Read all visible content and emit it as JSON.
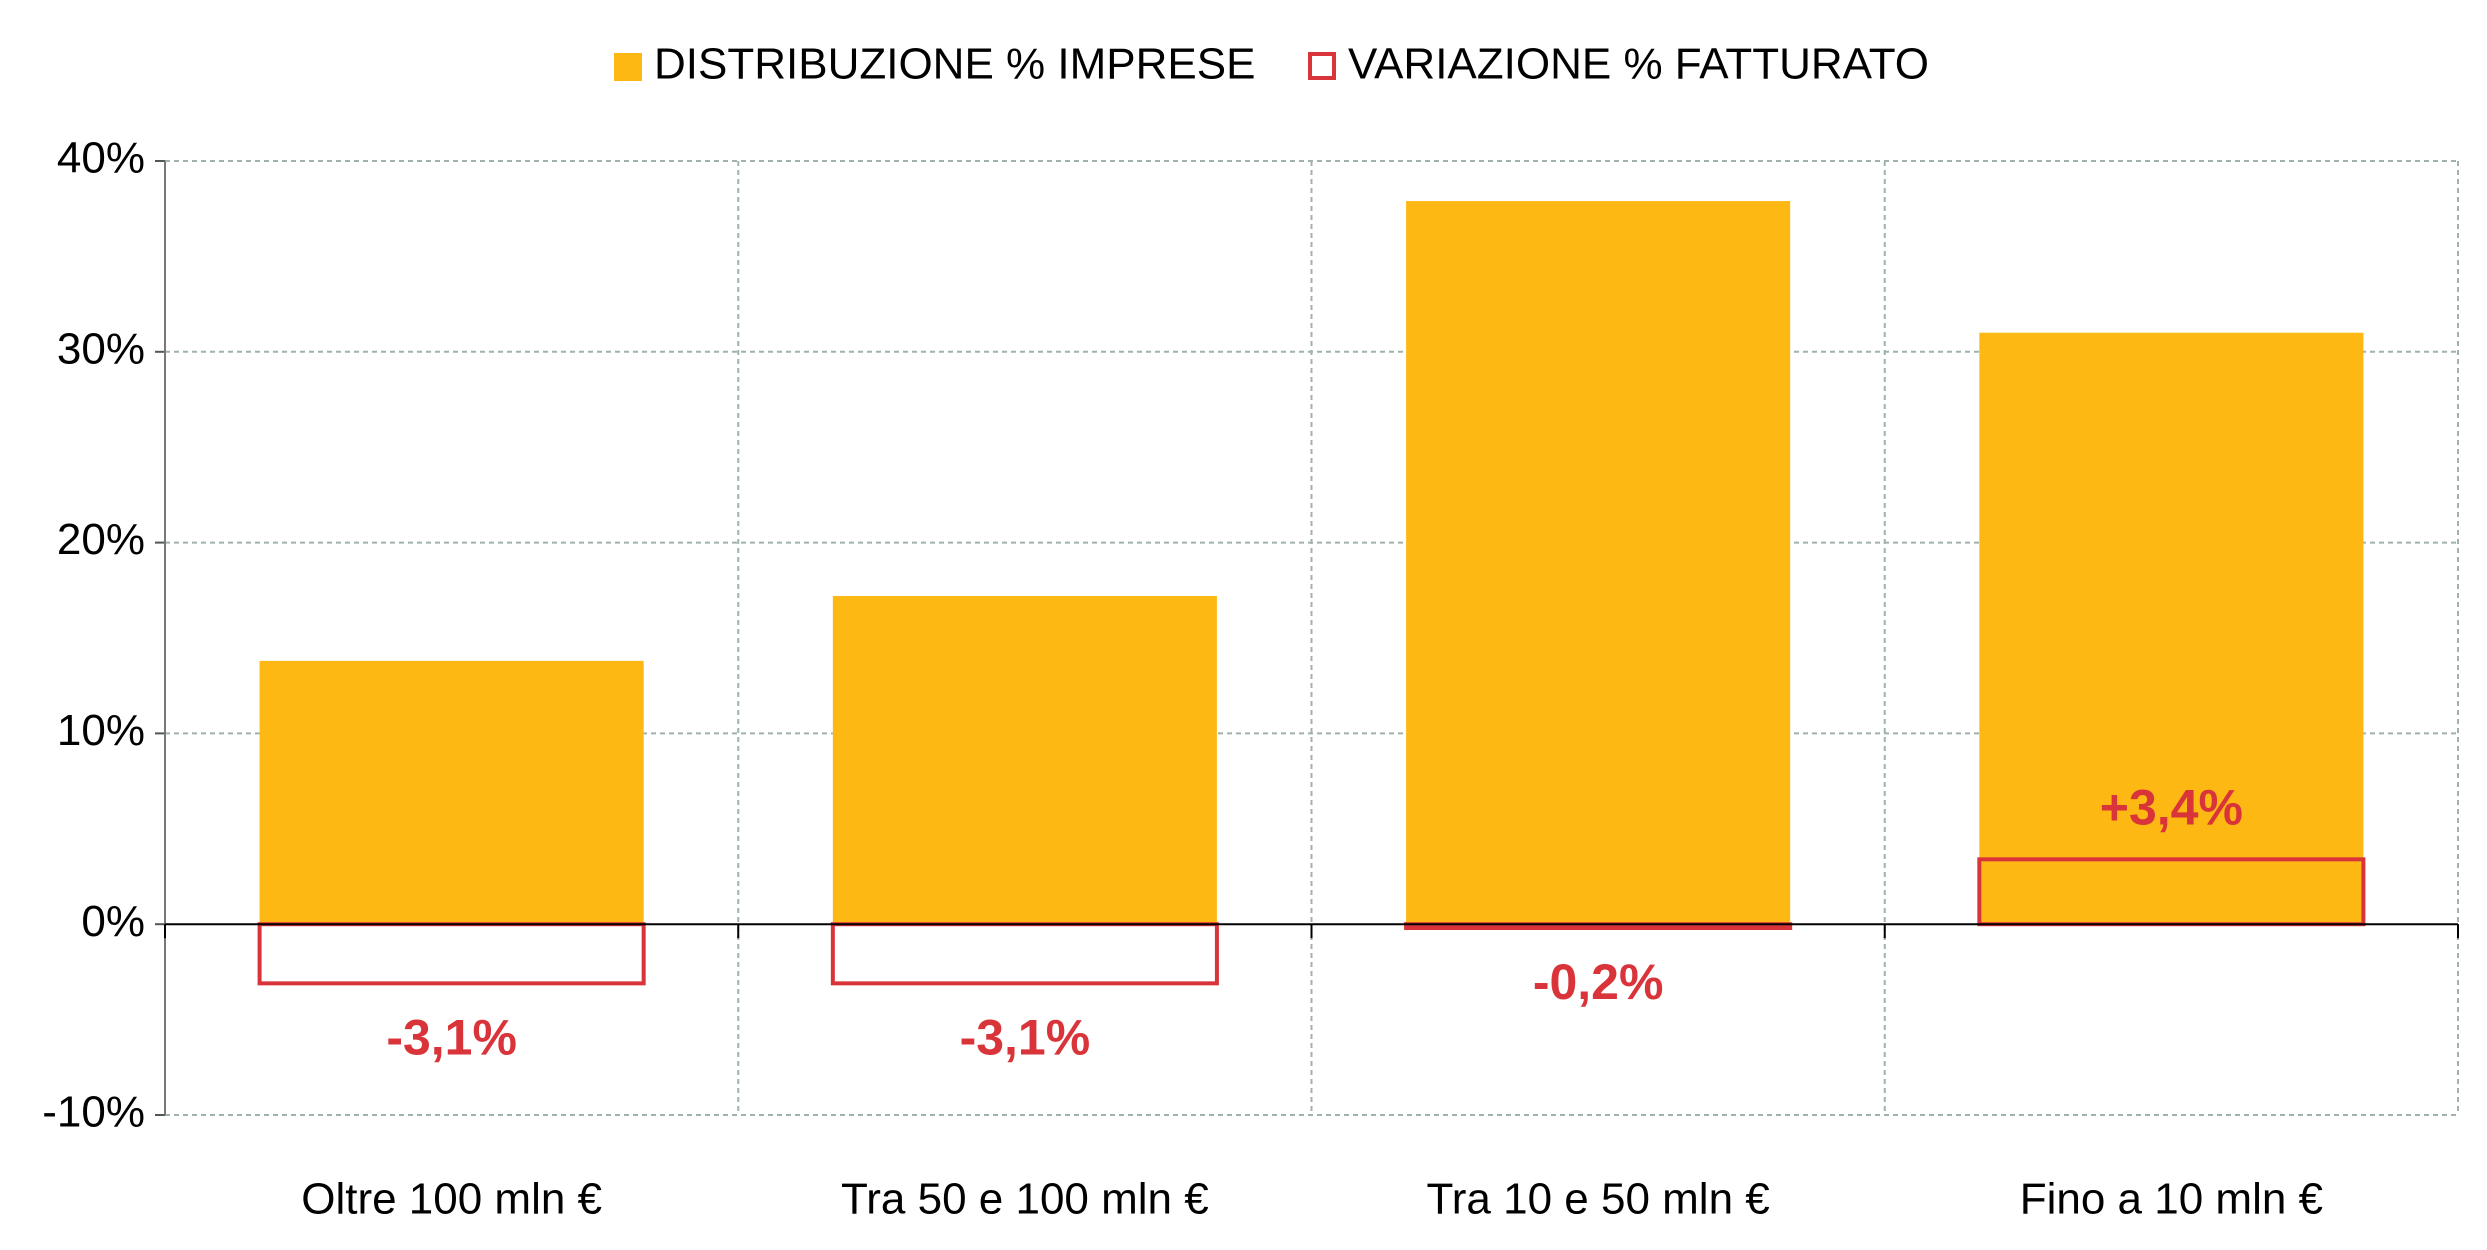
{
  "chart_data": {
    "type": "bar",
    "categories": [
      "Oltre 100 mln €",
      "Tra 50 e 100 mln €",
      "Tra 10 e 50 mln €",
      "Fino a 10 mln €"
    ],
    "series": [
      {
        "name": "DISTRIBUZIONE % IMPRESE",
        "color": "#fdb813",
        "style": "filled",
        "values": [
          13.8,
          17.2,
          37.9,
          31.0
        ]
      },
      {
        "name": "VARIAZIONE % FATTURATO",
        "color": "#d9343a",
        "style": "outline",
        "values": [
          -3.1,
          -3.1,
          -0.2,
          3.4
        ],
        "value_labels": [
          "-3,1%",
          "-3,1%",
          "-0,2%",
          "+3,4%"
        ]
      }
    ],
    "ylim": [
      -10,
      40
    ],
    "yticks": [
      {
        "value": -10,
        "label": "-10%"
      },
      {
        "value": 0,
        "label": "0%"
      },
      {
        "value": 10,
        "label": "10%"
      },
      {
        "value": 20,
        "label": "20%"
      },
      {
        "value": 30,
        "label": "30%"
      },
      {
        "value": 40,
        "label": "40%"
      }
    ],
    "grid": true,
    "legend": "top"
  }
}
